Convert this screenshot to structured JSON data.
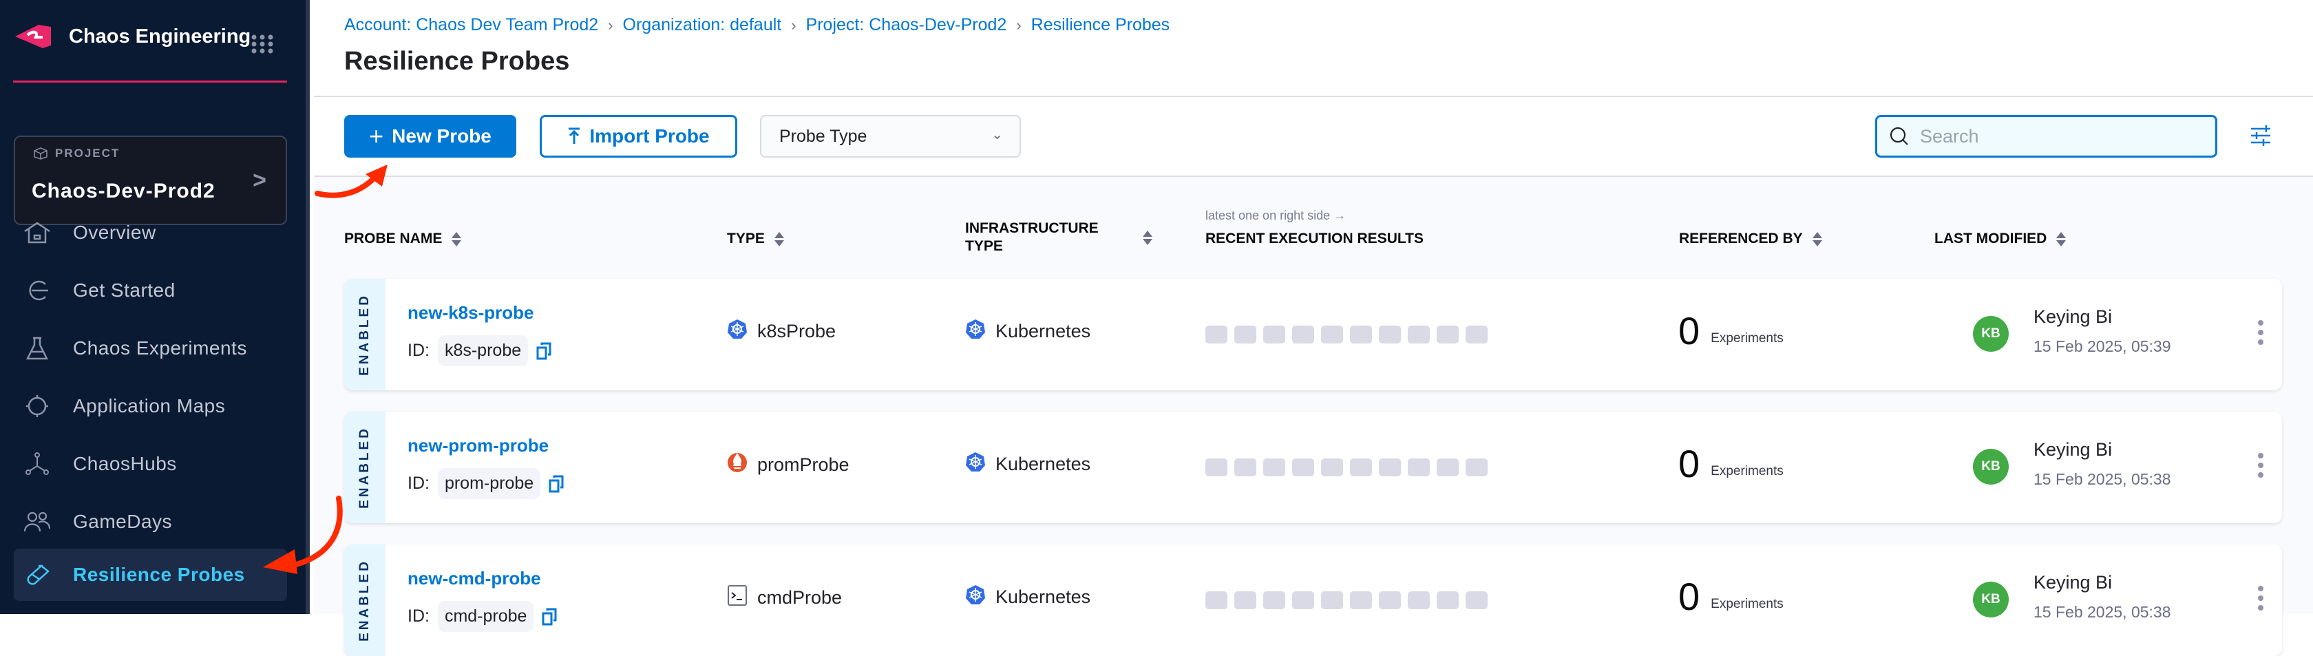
{
  "app": {
    "name": "Chaos Engineering",
    "logo": "harness-chaos-logo",
    "accent": "#e6205e"
  },
  "project": {
    "label": "PROJECT",
    "name": "Chaos-Dev-Prod2"
  },
  "sidebar": {
    "items": [
      {
        "label": "Overview",
        "icon": "home-icon"
      },
      {
        "label": "Get Started",
        "icon": "get-started-icon"
      },
      {
        "label": "Chaos Experiments",
        "icon": "flask-icon"
      },
      {
        "label": "Application Maps",
        "icon": "target-icon"
      },
      {
        "label": "ChaosHubs",
        "icon": "hub-icon"
      },
      {
        "label": "GameDays",
        "icon": "users-icon"
      },
      {
        "label": "Resilience Probes",
        "icon": "probe-icon",
        "active": true
      }
    ]
  },
  "breadcrumb": [
    "Account: Chaos Dev Team Prod2",
    "Organization: default",
    "Project: Chaos-Dev-Prod2",
    "Resilience Probes"
  ],
  "page_title": "Resilience Probes",
  "toolbar": {
    "new_label": "New Probe",
    "import_label": "Import Probe",
    "probe_type": "Probe Type",
    "search_placeholder": "Search"
  },
  "table": {
    "hint": "latest one on right side →",
    "columns": {
      "name": "PROBE NAME",
      "type": "TYPE",
      "infra1": "INFRASTRUCTURE",
      "infra2": "TYPE",
      "recent": "RECENT EXECUTION RESULTS",
      "ref": "REFERENCED BY",
      "modified": "LAST MODIFIED"
    },
    "rows": [
      {
        "status": "ENABLED",
        "name": "new-k8s-probe",
        "id_label": "ID:",
        "id": "k8s-probe",
        "type": "k8sProbe",
        "type_icon": "kubernetes-icon",
        "infra": "Kubernetes",
        "ref_count": "0",
        "ref_label": "Experiments",
        "user_initials": "KB",
        "user": "Keying Bi",
        "date": "15 Feb 2025, 05:39"
      },
      {
        "status": "ENABLED",
        "name": "new-prom-probe",
        "id_label": "ID:",
        "id": "prom-probe",
        "type": "promProbe",
        "type_icon": "prometheus-icon",
        "infra": "Kubernetes",
        "ref_count": "0",
        "ref_label": "Experiments",
        "user_initials": "KB",
        "user": "Keying Bi",
        "date": "15 Feb 2025, 05:38"
      },
      {
        "status": "ENABLED",
        "name": "new-cmd-probe",
        "id_label": "ID:",
        "id": "cmd-probe",
        "type": "cmdProbe",
        "type_icon": "terminal-icon",
        "infra": "Kubernetes",
        "ref_count": "0",
        "ref_label": "Experiments",
        "user_initials": "KB",
        "user": "Keying Bi",
        "date": "15 Feb 2025, 05:38"
      }
    ]
  },
  "colors": {
    "primary": "#0278d5",
    "sidebar_bg": "#0b1a33",
    "active_nav": "#3dc7f6",
    "avatar": "#42ab45",
    "annotation_arrow": "#ff2a00"
  }
}
